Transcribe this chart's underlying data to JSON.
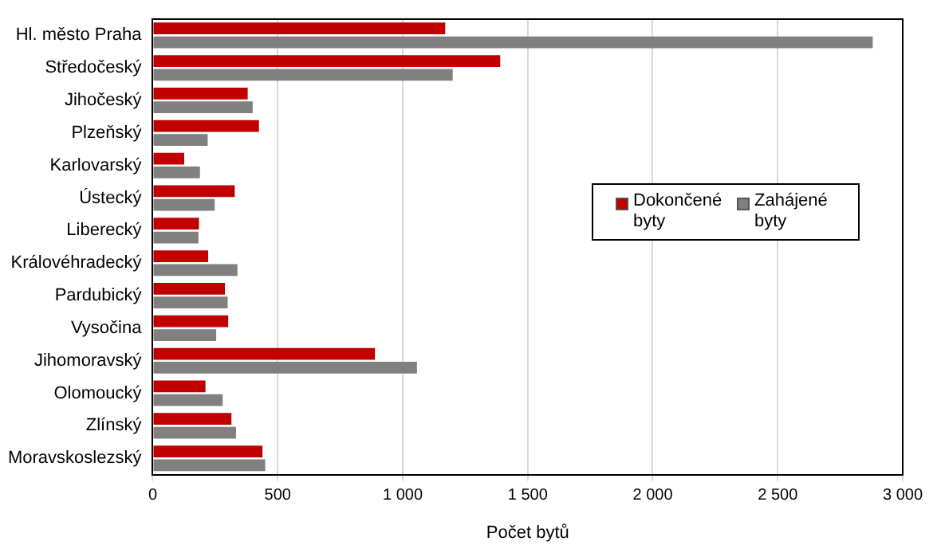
{
  "chart_data": {
    "type": "bar",
    "orientation": "horizontal",
    "xlabel": "Počet bytů",
    "categories": [
      "Hl. město Praha",
      "Středočeský",
      "Jihočeský",
      "Plzeňský",
      "Karlovarský",
      "Ústecký",
      "Liberecký",
      "Královéhradecký",
      "Pardubický",
      "Vysočina",
      "Jihomoravský",
      "Olomoucký",
      "Zlínský",
      "Moravskoslezský"
    ],
    "series": [
      {
        "name": "Dokončené byty",
        "color": "#c00000",
        "values": [
          1170,
          1390,
          380,
          425,
          126,
          328,
          185,
          222,
          289,
          302,
          889,
          211,
          315,
          439
        ]
      },
      {
        "name": "Zahájené byty",
        "color": "#808080",
        "values": [
          2880,
          1200,
          400,
          220,
          189,
          248,
          183,
          339,
          300,
          254,
          1057,
          280,
          333,
          450
        ]
      }
    ],
    "xlim": [
      0,
      3000
    ],
    "xticks": [
      0,
      {
        "value": 500,
        "label": "500"
      },
      {
        "value": 1000,
        "label": "1 000"
      },
      {
        "value": 1500,
        "label": "1 500"
      },
      {
        "value": 2000,
        "label": "2 000"
      },
      {
        "value": 2500,
        "label": "2 500"
      },
      {
        "value": 3000,
        "label": "3 000"
      }
    ],
    "grid": "x",
    "legend": "right"
  }
}
